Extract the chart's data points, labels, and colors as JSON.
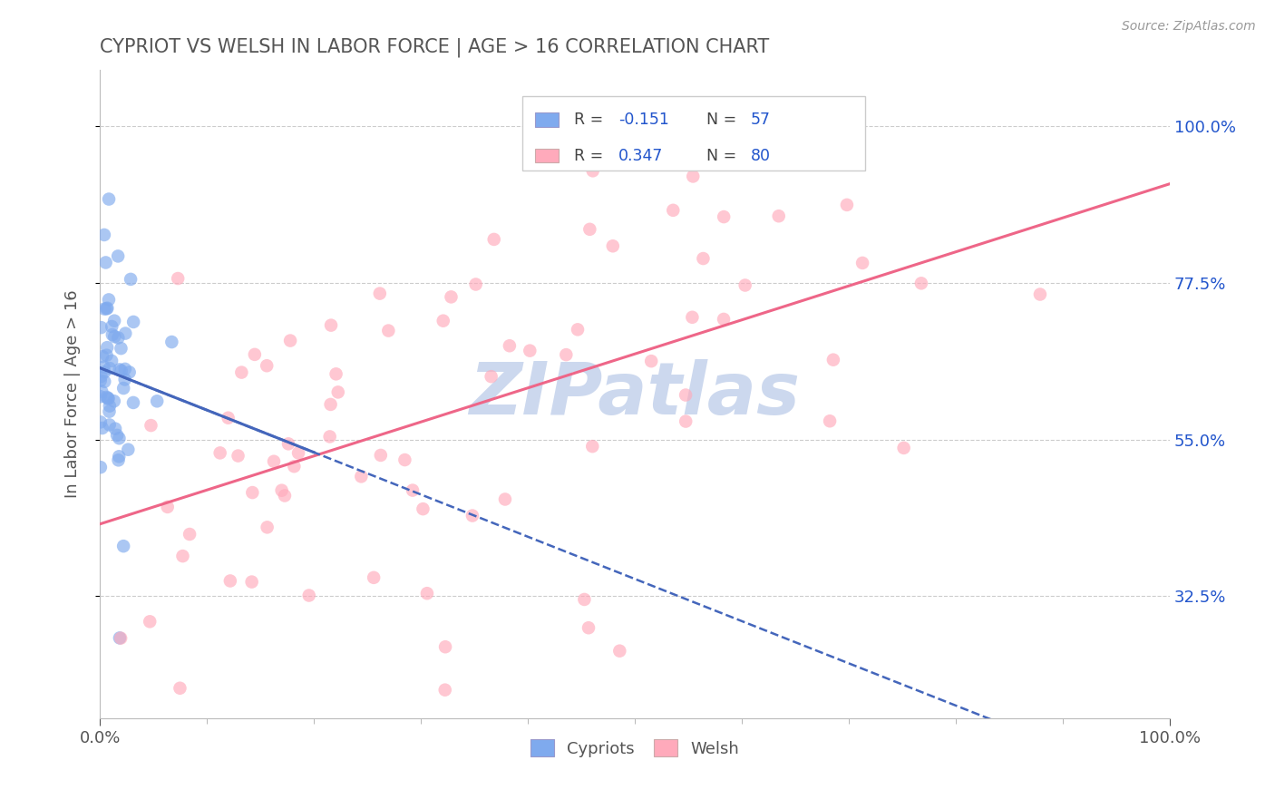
{
  "title": "CYPRIOT VS WELSH IN LABOR FORCE | AGE > 16 CORRELATION CHART",
  "source_text": "Source: ZipAtlas.com",
  "ylabel": "In Labor Force | Age > 16",
  "xlim": [
    0.0,
    1.0
  ],
  "ylim": [
    0.15,
    1.08
  ],
  "xtick_positions": [
    0.0,
    1.0
  ],
  "xtick_labels": [
    "0.0%",
    "100.0%"
  ],
  "ytick_values": [
    0.325,
    0.55,
    0.775,
    1.0
  ],
  "ytick_labels": [
    "32.5%",
    "55.0%",
    "77.5%",
    "100.0%"
  ],
  "cypriot_color": "#7faaee",
  "welsh_color": "#ffaabb",
  "cypriot_line_color": "#4466bb",
  "welsh_line_color": "#ee6688",
  "cypriot_R": -0.151,
  "cypriot_N": 57,
  "welsh_R": 0.347,
  "welsh_N": 80,
  "blue_annotation_color": "#2255cc",
  "watermark_text": "ZIPatlas",
  "watermark_color": "#ccd8ee",
  "grid_color": "#dddddd",
  "grid_dashed_color": "#cccccc",
  "background_color": "#ffffff",
  "title_color": "#555555",
  "source_color": "#999999",
  "legend_label_color": "#555555",
  "tick_color": "#555555"
}
